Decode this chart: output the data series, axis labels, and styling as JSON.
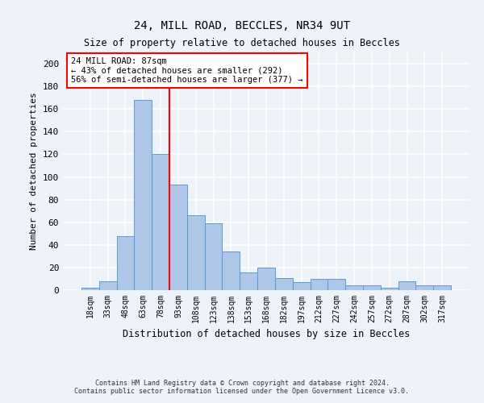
{
  "title1": "24, MILL ROAD, BECCLES, NR34 9UT",
  "title2": "Size of property relative to detached houses in Beccles",
  "xlabel": "Distribution of detached houses by size in Beccles",
  "ylabel": "Number of detached properties",
  "categories": [
    "18sqm",
    "33sqm",
    "48sqm",
    "63sqm",
    "78sqm",
    "93sqm",
    "108sqm",
    "123sqm",
    "138sqm",
    "153sqm",
    "168sqm",
    "182sqm",
    "197sqm",
    "212sqm",
    "227sqm",
    "242sqm",
    "257sqm",
    "272sqm",
    "287sqm",
    "302sqm",
    "317sqm"
  ],
  "values": [
    2,
    8,
    48,
    168,
    120,
    93,
    66,
    59,
    34,
    16,
    20,
    11,
    7,
    10,
    10,
    4,
    4,
    2,
    8,
    4,
    4
  ],
  "bar_color": "#aec6e8",
  "bar_edge_color": "#5b9bd5",
  "vline_x_index": 4.5,
  "vline_color": "red",
  "annotation_text": "24 MILL ROAD: 87sqm\n← 43% of detached houses are smaller (292)\n56% of semi-detached houses are larger (377) →",
  "annotation_box_color": "white",
  "annotation_box_edge": "red",
  "ylim": [
    0,
    210
  ],
  "yticks": [
    0,
    20,
    40,
    60,
    80,
    100,
    120,
    140,
    160,
    180,
    200
  ],
  "footer1": "Contains HM Land Registry data © Crown copyright and database right 2024.",
  "footer2": "Contains public sector information licensed under the Open Government Licence v3.0.",
  "bg_color": "#eef2f9",
  "grid_color": "white"
}
